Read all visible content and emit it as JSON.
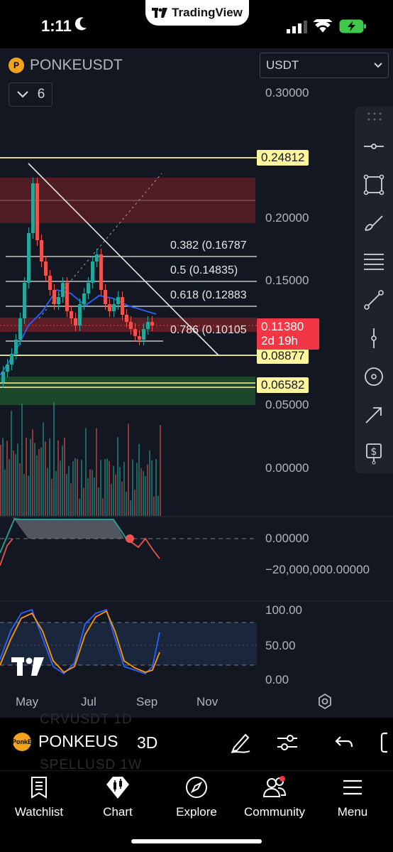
{
  "status_bar": {
    "time": "1:11",
    "app_pill": "TradingView"
  },
  "chart": {
    "symbol": "PONKEUSDT",
    "indicators_count": "6",
    "currency": "USDT",
    "price_axis": [
      "0.30000",
      "0.20000",
      "0.15000",
      "0.05000",
      "0.00000"
    ],
    "price_tags": {
      "resistance": "0.24812",
      "support_1": "0.08877",
      "support_2": "0.06582"
    },
    "current_price": "0.11380",
    "countdown": "2d 19h",
    "fib_levels": [
      "0.382 (0.16787",
      "0.5 (0.14835)",
      "0.618 (0.12883",
      "0.786 (0.10105"
    ],
    "oscillator_axis": [
      "0.00000",
      "−20,000,000.00000"
    ],
    "stoch_axis": [
      "100.00",
      "50.00",
      "0.00"
    ],
    "x_axis": [
      "May",
      "Jul",
      "Sep",
      "Nov"
    ]
  },
  "bottom_bar": {
    "symbol": "PONKEUS",
    "coin_text": "PonkE",
    "timeframe": "3D",
    "ghost_top": "CRVUSDT   1D",
    "ghost_bottom": "SPELLUSD   1W"
  },
  "tabs": [
    {
      "label": "Watchlist",
      "icon": "watchlist-icon"
    },
    {
      "label": "Chart",
      "icon": "chart-icon"
    },
    {
      "label": "Explore",
      "icon": "compass-icon"
    },
    {
      "label": "Community",
      "icon": "community-icon"
    },
    {
      "label": "Menu",
      "icon": "menu-icon"
    }
  ],
  "colors": {
    "background": "#131722",
    "up": "#26a69a",
    "down": "#ef5350",
    "accent_yellow": "#fff59d",
    "price_tag": "#f23645"
  }
}
